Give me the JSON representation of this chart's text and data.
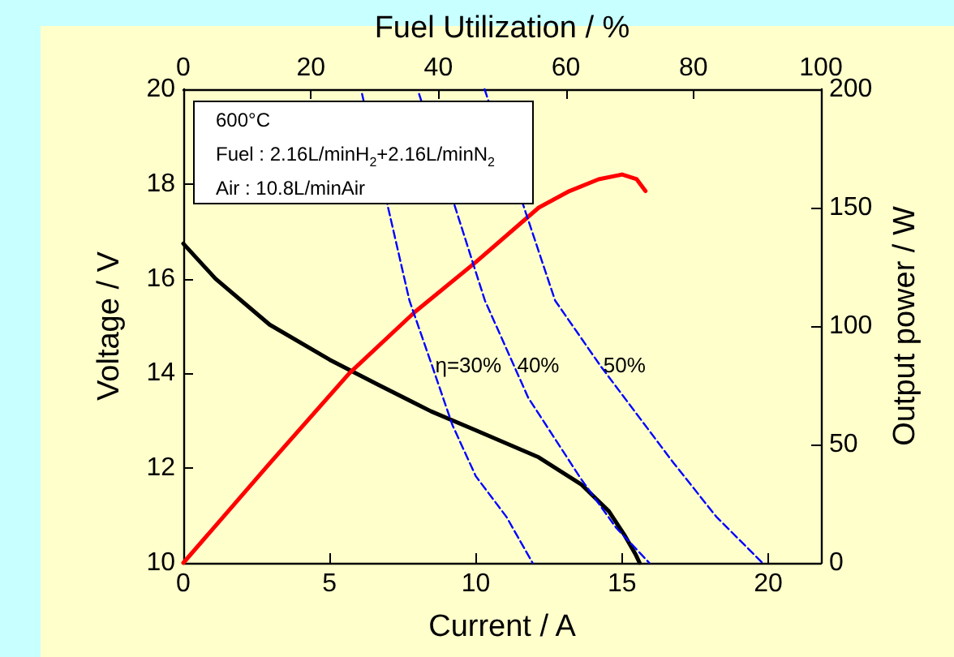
{
  "chart_data": {
    "type": "line",
    "xlabel": "Current / A",
    "ylabel": "Voltage / V",
    "y2label": "Output power / W",
    "x2label": "Fuel Utilization / %",
    "xlim": [
      0,
      21.8
    ],
    "xticks": [
      0,
      5,
      10,
      15,
      20
    ],
    "x2lim": [
      0,
      100
    ],
    "x2ticks": [
      0,
      20,
      40,
      60,
      80,
      100
    ],
    "ylim": [
      10,
      20
    ],
    "yticks": [
      10,
      12,
      14,
      16,
      18,
      20
    ],
    "y2lim": [
      0,
      200
    ],
    "y2ticks": [
      0,
      50,
      100,
      150,
      200
    ],
    "grid": false,
    "marker": "none",
    "series": [
      {
        "color": "#000000",
        "line_style": "solid",
        "x": [
          0,
          1.1,
          2.95,
          5,
          6.63,
          8.47,
          10,
          12.15,
          13.6,
          14.55,
          15.1,
          15.47,
          15.6
        ],
        "values": [
          16.74,
          16.0,
          15.03,
          14.29,
          13.77,
          13.2,
          12.8,
          12.23,
          11.66,
          11.09,
          10.57,
          10.17,
          10
        ]
      },
      {
        "color": "#ff0000",
        "line_style": "solid",
        "axis": "y2",
        "x": [
          0,
          2.95,
          5.67,
          7.92,
          10,
          12.15,
          13.2,
          14.2,
          15,
          15.5,
          15.8
        ],
        "values": [
          0,
          42,
          80,
          106,
          127,
          150,
          157,
          162,
          164,
          162,
          157
        ]
      },
      {
        "color": "#0000ff",
        "line_style": "dashed",
        "x": [
          6.11,
          7.73,
          8.5,
          9.2,
          10,
          11.05,
          11.94
        ],
        "values": [
          19.9,
          15.54,
          14.17,
          12.91,
          11.83,
          10.97,
          10
        ]
      },
      {
        "color": "#0000ff",
        "line_style": "dashed",
        "x": [
          8.06,
          10.31,
          11.3,
          11.79,
          13.6,
          14.8,
          15.93
        ],
        "values": [
          19.9,
          15.54,
          14.17,
          13.49,
          11.77,
          10.74,
          10
        ]
      },
      {
        "color": "#0000ff",
        "line_style": "dashed",
        "x": [
          10.3,
          12.71,
          14.25,
          16.76,
          18.23,
          19.8
        ],
        "values": [
          20,
          15.54,
          14.17,
          12.11,
          10.97,
          10
        ]
      }
    ],
    "annotations": [
      "600°C",
      "Fuel : 2.16L/minH$_{2}$+2.16L/minN$_{2}$",
      "Air : 10.8L/minAir",
      {
        "text": "η=30%",
        "x": 8.5,
        "y": 14.17
      },
      {
        "text": "40%",
        "x": 11.3,
        "y": 14.17
      },
      {
        "text": "50%",
        "x": 14.25,
        "y": 14.17
      }
    ]
  }
}
